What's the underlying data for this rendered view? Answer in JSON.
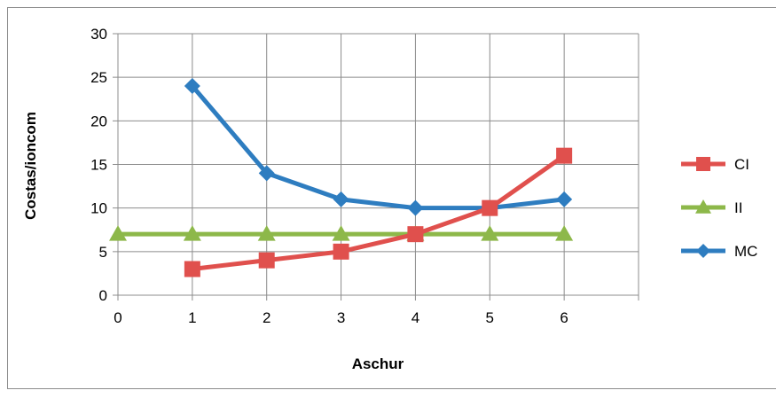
{
  "chart_data": {
    "type": "line",
    "title": "",
    "xlabel": "Aschur",
    "ylabel": "Costas/ioncom",
    "xlim": [
      0,
      7
    ],
    "ylim": [
      0,
      30
    ],
    "x_ticks": [
      "0",
      "1",
      "2",
      "3",
      "4",
      "5",
      "6"
    ],
    "y_ticks": [
      "0",
      "5",
      "10",
      "15",
      "20",
      "25",
      "30"
    ],
    "grid": true,
    "legend_position": "right",
    "series": [
      {
        "name": "CI",
        "color": "#E0504D",
        "marker": "square",
        "x": [
          1,
          2,
          3,
          4,
          5,
          6
        ],
        "values": [
          3,
          4,
          5,
          7,
          10,
          16
        ]
      },
      {
        "name": "II",
        "color": "#8DB84A",
        "marker": "triangle",
        "x": [
          0,
          1,
          2,
          3,
          4,
          5,
          6
        ],
        "values": [
          7,
          7,
          7,
          7,
          7,
          7,
          7
        ]
      },
      {
        "name": "MC",
        "color": "#2E7DC0",
        "marker": "diamond",
        "x": [
          1,
          2,
          3,
          4,
          5,
          6
        ],
        "values": [
          24,
          14,
          11,
          10,
          10,
          11
        ]
      }
    ]
  }
}
